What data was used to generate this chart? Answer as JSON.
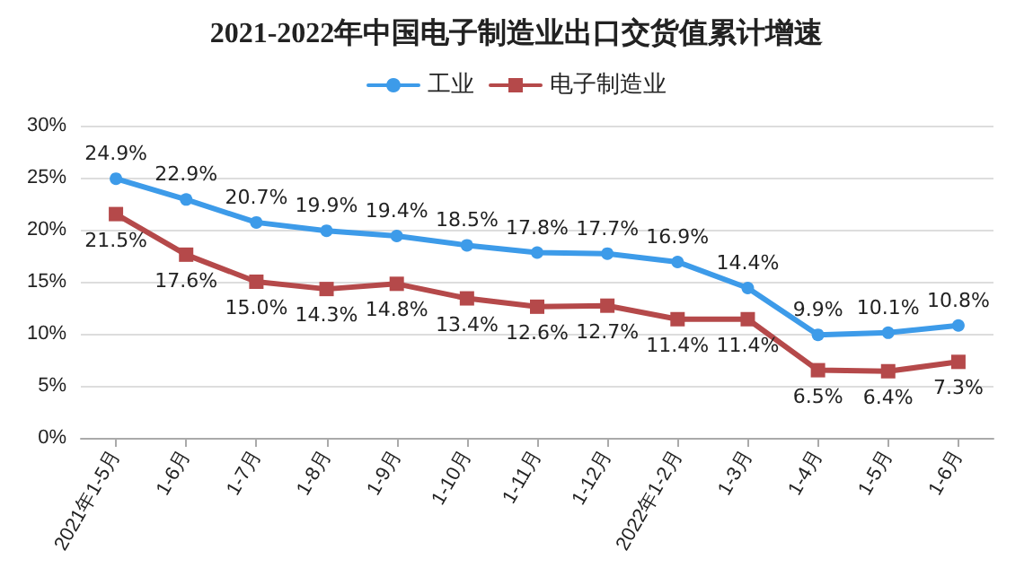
{
  "chart_data": {
    "type": "line",
    "title": "2021-2022年中国电子制造业出口交货值累计增速",
    "categories": [
      "2021年1-5月",
      "1-6月",
      "1-7月",
      "1-8月",
      "1-9月",
      "1-10月",
      "1-11月",
      "1-12月",
      "2022年1-2月",
      "1-3月",
      "1-4月",
      "1-5月",
      "1-6月"
    ],
    "series": [
      {
        "name": "工业",
        "color": "#3d9be9",
        "marker": "circle",
        "values": [
          24.9,
          22.9,
          20.7,
          19.9,
          19.4,
          18.5,
          17.8,
          17.7,
          16.9,
          14.4,
          9.9,
          10.1,
          10.8
        ],
        "value_labels": [
          "24.9%",
          "22.9%",
          "20.7%",
          "19.9%",
          "19.4%",
          "18.5%",
          "17.8%",
          "17.7%",
          "16.9%",
          "14.4%",
          "9.9%",
          "10.1%",
          "10.8%"
        ]
      },
      {
        "name": "电子制造业",
        "color": "#b5494a",
        "marker": "square",
        "values": [
          21.5,
          17.6,
          15.0,
          14.3,
          14.8,
          13.4,
          12.6,
          12.7,
          11.4,
          11.4,
          6.5,
          6.4,
          7.3
        ],
        "value_labels": [
          "21.5%",
          "17.6%",
          "15.0%",
          "14.3%",
          "14.8%",
          "13.4%",
          "12.6%",
          "12.7%",
          "11.4%",
          "11.4%",
          "6.5%",
          "6.4%",
          "7.3%"
        ]
      }
    ],
    "ylim": [
      0,
      30
    ],
    "yticks": [
      {
        "value": 0,
        "label": "0%"
      },
      {
        "value": 5,
        "label": "5%"
      },
      {
        "value": 10,
        "label": "10%"
      },
      {
        "value": 15,
        "label": "15%"
      },
      {
        "value": 20,
        "label": "20%"
      },
      {
        "value": 25,
        "label": "25%"
      },
      {
        "value": 30,
        "label": "30%"
      }
    ],
    "grid": "y",
    "legend": "top",
    "line_style": "solid"
  }
}
